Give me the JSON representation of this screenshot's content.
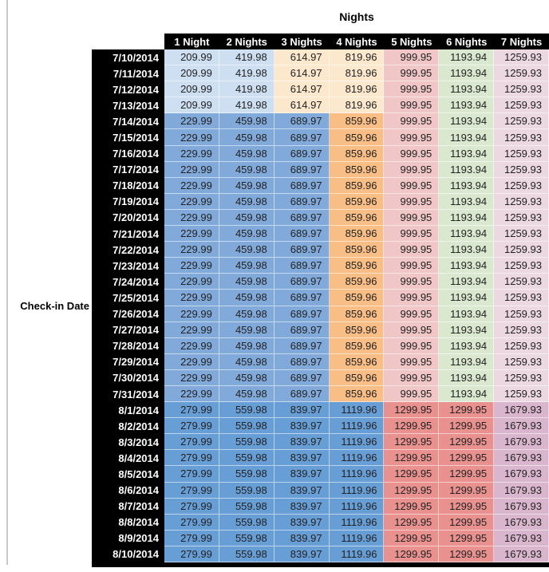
{
  "palette": {
    "blue_light": "#CDDFF1",
    "blue_med": "#81AADB",
    "blue_dark": "#689ED6",
    "orange_light": "#FCE8CD",
    "orange_med": "#F9BE85",
    "pink": "#F0C6C6",
    "green": "#D9E8CF",
    "mauve": "#ECD8E1",
    "red": "#E9918F",
    "purple": "#D9B6CD",
    "header_bg": "#000000",
    "header_text": "#FFFFFF",
    "value_text": "#222222"
  },
  "chart_data": {
    "type": "heatmap",
    "title": "Nights",
    "row_axis_label": "Check-in Date",
    "columns": [
      "1 Night",
      "2 Nights",
      "3 Nights",
      "4 Nights",
      "5 Nights",
      "6 Nights",
      "7 Nights"
    ],
    "bands": {
      "A": {
        "cell_colors": [
          "blue_light",
          "blue_light",
          "orange_light",
          "orange_light",
          "pink",
          "green",
          "mauve"
        ]
      },
      "B": {
        "cell_colors": [
          "blue_med",
          "blue_med",
          "blue_med",
          "orange_med",
          "pink",
          "green",
          "mauve"
        ]
      },
      "C": {
        "cell_colors": [
          "blue_dark",
          "blue_dark",
          "blue_dark",
          "blue_dark",
          "red",
          "red",
          "purple"
        ]
      }
    },
    "rows": [
      {
        "date": "7/10/2014",
        "band": "A",
        "values": [
          "209.99",
          "419.98",
          "614.97",
          "819.96",
          "999.95",
          "1193.94",
          "1259.93"
        ]
      },
      {
        "date": "7/11/2014",
        "band": "A",
        "values": [
          "209.99",
          "419.98",
          "614.97",
          "819.96",
          "999.95",
          "1193.94",
          "1259.93"
        ]
      },
      {
        "date": "7/12/2014",
        "band": "A",
        "values": [
          "209.99",
          "419.98",
          "614.97",
          "819.96",
          "999.95",
          "1193.94",
          "1259.93"
        ]
      },
      {
        "date": "7/13/2014",
        "band": "A",
        "values": [
          "209.99",
          "419.98",
          "614.97",
          "819.96",
          "999.95",
          "1193.94",
          "1259.93"
        ]
      },
      {
        "date": "7/14/2014",
        "band": "B",
        "values": [
          "229.99",
          "459.98",
          "689.97",
          "859.96",
          "999.95",
          "1193.94",
          "1259.93"
        ]
      },
      {
        "date": "7/15/2014",
        "band": "B",
        "values": [
          "229.99",
          "459.98",
          "689.97",
          "859.96",
          "999.95",
          "1193.94",
          "1259.93"
        ]
      },
      {
        "date": "7/16/2014",
        "band": "B",
        "values": [
          "229.99",
          "459.98",
          "689.97",
          "859.96",
          "999.95",
          "1193.94",
          "1259.93"
        ]
      },
      {
        "date": "7/17/2014",
        "band": "B",
        "values": [
          "229.99",
          "459.98",
          "689.97",
          "859.96",
          "999.95",
          "1193.94",
          "1259.93"
        ]
      },
      {
        "date": "7/18/2014",
        "band": "B",
        "values": [
          "229.99",
          "459.98",
          "689.97",
          "859.96",
          "999.95",
          "1193.94",
          "1259.93"
        ]
      },
      {
        "date": "7/19/2014",
        "band": "B",
        "values": [
          "229.99",
          "459.98",
          "689.97",
          "859.96",
          "999.95",
          "1193.94",
          "1259.93"
        ]
      },
      {
        "date": "7/20/2014",
        "band": "B",
        "values": [
          "229.99",
          "459.98",
          "689.97",
          "859.96",
          "999.95",
          "1193.94",
          "1259.93"
        ]
      },
      {
        "date": "7/21/2014",
        "band": "B",
        "values": [
          "229.99",
          "459.98",
          "689.97",
          "859.96",
          "999.95",
          "1193.94",
          "1259.93"
        ]
      },
      {
        "date": "7/22/2014",
        "band": "B",
        "values": [
          "229.99",
          "459.98",
          "689.97",
          "859.96",
          "999.95",
          "1193.94",
          "1259.93"
        ]
      },
      {
        "date": "7/23/2014",
        "band": "B",
        "values": [
          "229.99",
          "459.98",
          "689.97",
          "859.96",
          "999.95",
          "1193.94",
          "1259.93"
        ]
      },
      {
        "date": "7/24/2014",
        "band": "B",
        "values": [
          "229.99",
          "459.98",
          "689.97",
          "859.96",
          "999.95",
          "1193.94",
          "1259.93"
        ]
      },
      {
        "date": "7/25/2014",
        "band": "B",
        "values": [
          "229.99",
          "459.98",
          "689.97",
          "859.96",
          "999.95",
          "1193.94",
          "1259.93"
        ]
      },
      {
        "date": "7/26/2014",
        "band": "B",
        "values": [
          "229.99",
          "459.98",
          "689.97",
          "859.96",
          "999.95",
          "1193.94",
          "1259.93"
        ]
      },
      {
        "date": "7/27/2014",
        "band": "B",
        "values": [
          "229.99",
          "459.98",
          "689.97",
          "859.96",
          "999.95",
          "1193.94",
          "1259.93"
        ]
      },
      {
        "date": "7/28/2014",
        "band": "B",
        "values": [
          "229.99",
          "459.98",
          "689.97",
          "859.96",
          "999.95",
          "1193.94",
          "1259.93"
        ]
      },
      {
        "date": "7/29/2014",
        "band": "B",
        "values": [
          "229.99",
          "459.98",
          "689.97",
          "859.96",
          "999.95",
          "1193.94",
          "1259.93"
        ]
      },
      {
        "date": "7/30/2014",
        "band": "B",
        "values": [
          "229.99",
          "459.98",
          "689.97",
          "859.96",
          "999.95",
          "1193.94",
          "1259.93"
        ]
      },
      {
        "date": "7/31/2014",
        "band": "B",
        "values": [
          "229.99",
          "459.98",
          "689.97",
          "859.96",
          "999.95",
          "1193.94",
          "1259.93"
        ]
      },
      {
        "date": "8/1/2014",
        "band": "C",
        "values": [
          "279.99",
          "559.98",
          "839.97",
          "1119.96",
          "1299.95",
          "1299.95",
          "1679.93"
        ]
      },
      {
        "date": "8/2/2014",
        "band": "C",
        "values": [
          "279.99",
          "559.98",
          "839.97",
          "1119.96",
          "1299.95",
          "1299.95",
          "1679.93"
        ]
      },
      {
        "date": "8/3/2014",
        "band": "C",
        "values": [
          "279.99",
          "559.98",
          "839.97",
          "1119.96",
          "1299.95",
          "1299.95",
          "1679.93"
        ]
      },
      {
        "date": "8/4/2014",
        "band": "C",
        "values": [
          "279.99",
          "559.98",
          "839.97",
          "1119.96",
          "1299.95",
          "1299.95",
          "1679.93"
        ]
      },
      {
        "date": "8/5/2014",
        "band": "C",
        "values": [
          "279.99",
          "559.98",
          "839.97",
          "1119.96",
          "1299.95",
          "1299.95",
          "1679.93"
        ]
      },
      {
        "date": "8/6/2014",
        "band": "C",
        "values": [
          "279.99",
          "559.98",
          "839.97",
          "1119.96",
          "1299.95",
          "1299.95",
          "1679.93"
        ]
      },
      {
        "date": "8/7/2014",
        "band": "C",
        "values": [
          "279.99",
          "559.98",
          "839.97",
          "1119.96",
          "1299.95",
          "1299.95",
          "1679.93"
        ]
      },
      {
        "date": "8/8/2014",
        "band": "C",
        "values": [
          "279.99",
          "559.98",
          "839.97",
          "1119.96",
          "1299.95",
          "1299.95",
          "1679.93"
        ]
      },
      {
        "date": "8/9/2014",
        "band": "C",
        "values": [
          "279.99",
          "559.98",
          "839.97",
          "1119.96",
          "1299.95",
          "1299.95",
          "1679.93"
        ]
      },
      {
        "date": "8/10/2014",
        "band": "C",
        "values": [
          "279.99",
          "559.98",
          "839.97",
          "1119.96",
          "1299.95",
          "1299.95",
          "1679.93"
        ]
      }
    ]
  }
}
